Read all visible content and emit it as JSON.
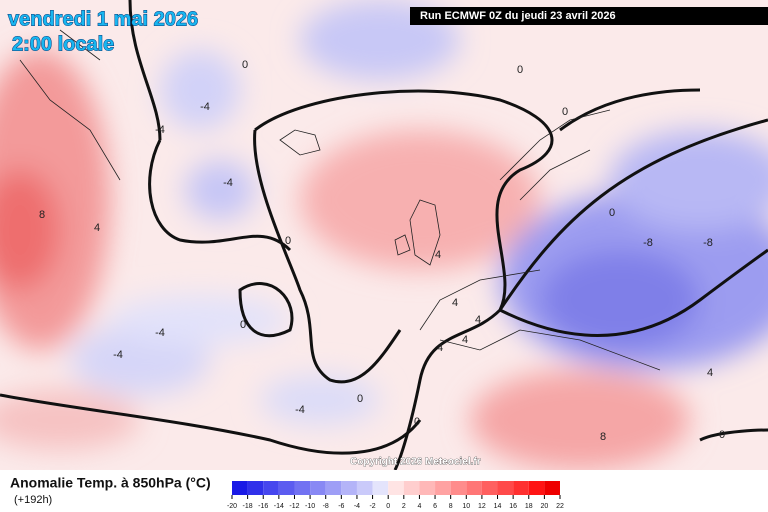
{
  "header": {
    "date": "vendredi 1 mai 2026",
    "time": "2:00 locale",
    "run": "Run ECMWF 0Z du jeudi 23 avril 2026"
  },
  "map": {
    "contour_labels": [
      "0",
      "-4",
      "-4",
      "-4",
      "8",
      "4",
      "0",
      "0",
      "-4",
      "-4",
      "-4",
      "0",
      "0",
      "4",
      "4",
      "4",
      "4",
      "4",
      "8",
      "0",
      "4",
      "0",
      "0",
      "-8",
      "-8",
      "0"
    ],
    "copyright": "Copyright 2026 Meteociel.fr"
  },
  "legend": {
    "title": "Anomalie Temp. à 850hPa (°C)",
    "lead": "(+192h)"
  },
  "colorbar": {
    "ticks": [
      -20,
      -18,
      -16,
      -14,
      -12,
      -10,
      -8,
      -6,
      -4,
      -2,
      0,
      2,
      4,
      6,
      8,
      10,
      12,
      14,
      16,
      18,
      20,
      22
    ],
    "colors": [
      "#1a1ae6",
      "#3030ea",
      "#4646ee",
      "#5c5cf0",
      "#7272f2",
      "#8888f4",
      "#9e9ef6",
      "#b4b4f8",
      "#caCAFA",
      "#e4e4fc",
      "#ffe4e4",
      "#ffcece",
      "#ffb8b8",
      "#ffa2a2",
      "#ff8c8c",
      "#ff7676",
      "#ff6060",
      "#ff4a4a",
      "#ff3030",
      "#ff1414",
      "#ee0000"
    ]
  }
}
